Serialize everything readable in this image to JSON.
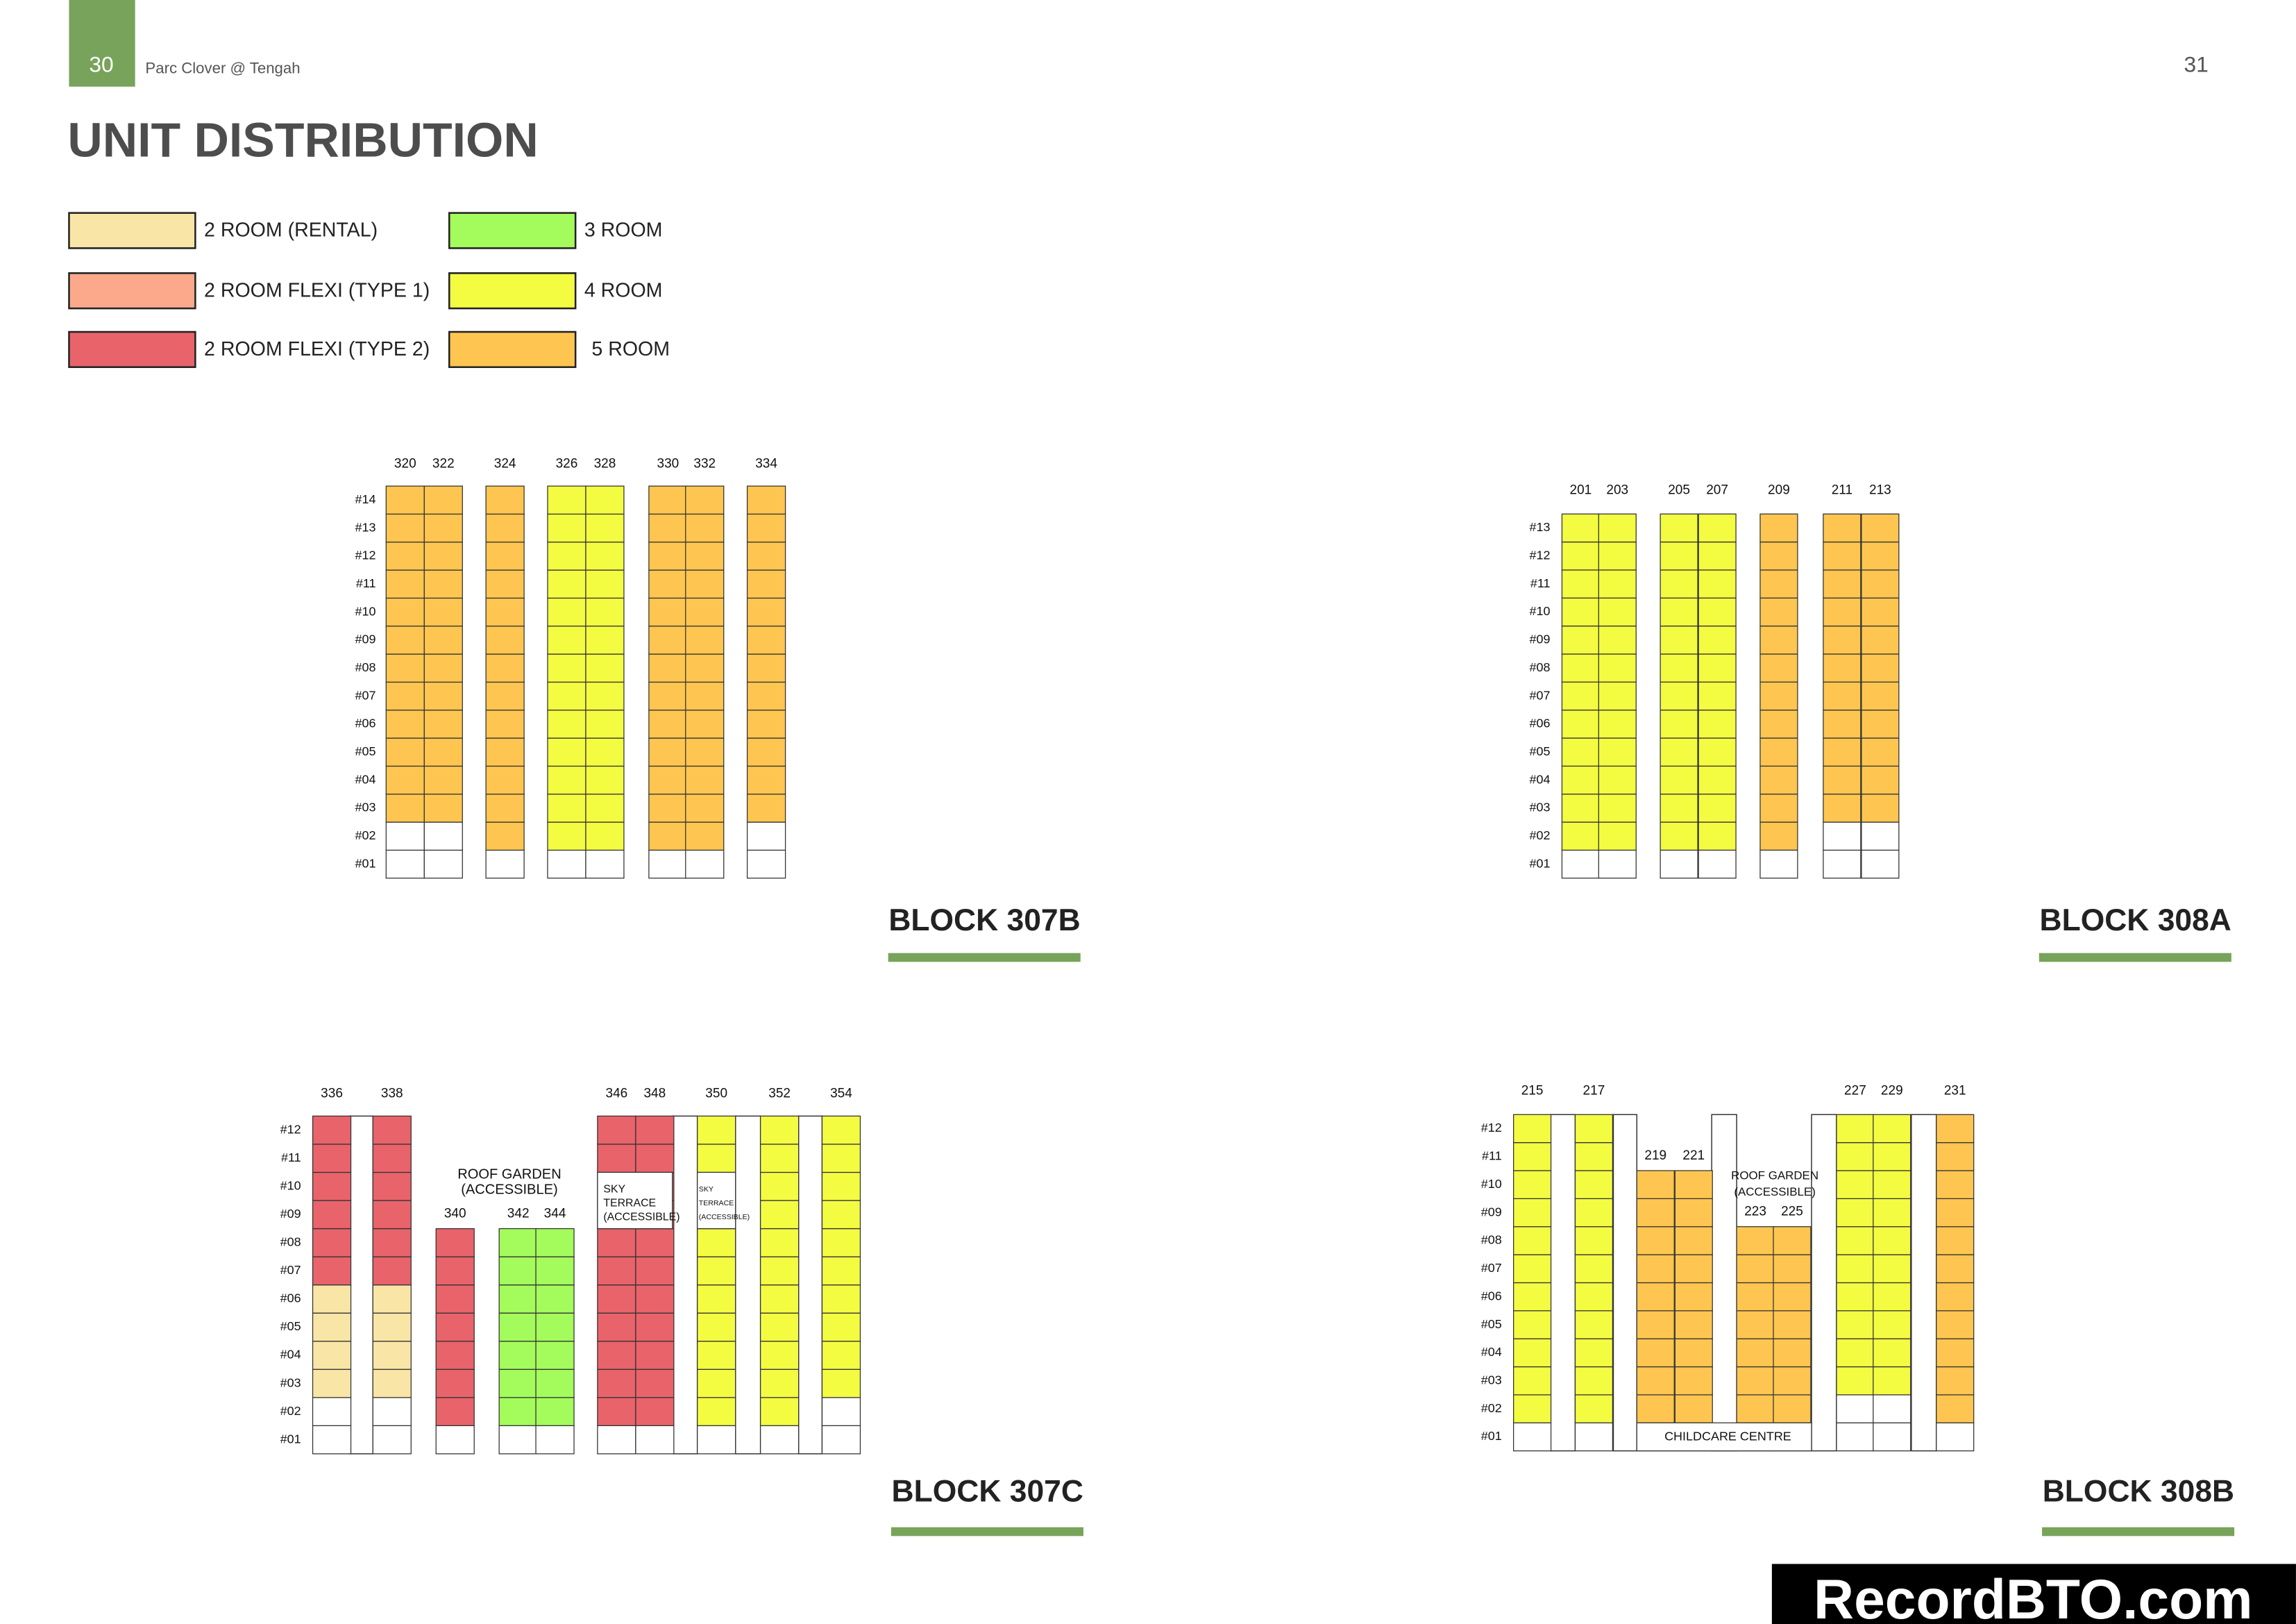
{
  "header": {
    "page_left": "30",
    "brand": "Parc Clover @ Tengah",
    "page_right": "31",
    "title": "UNIT DISTRIBUTION"
  },
  "legend": [
    {
      "label": "2 ROOM (RENTAL)",
      "color": "#f9e6a6"
    },
    {
      "label": "2 ROOM FLEXI (TYPE 1)",
      "color": "#fba98a"
    },
    {
      "label": "2 ROOM FLEXI (TYPE 2)",
      "color": "#e9636b"
    },
    {
      "label": "3 ROOM",
      "color": "#a3fc5c"
    },
    {
      "label": "4 ROOM",
      "color": "#f4fc42"
    },
    {
      "label": "5 ROOM",
      "color": "#fec650"
    }
  ],
  "blocks": [
    {
      "name": "BLOCK 307B",
      "floors": [
        "#14",
        "#13",
        "#12",
        "#11",
        "#10",
        "#09",
        "#08",
        "#07",
        "#06",
        "#05",
        "#04",
        "#03",
        "#02",
        "#01"
      ],
      "units": [
        {
          "number": "320",
          "segments": [
            {
              "legend": 5,
              "floors": [
                3,
                14
              ]
            }
          ]
        },
        {
          "number": "322",
          "segments": [
            {
              "legend": 5,
              "floors": [
                3,
                14
              ]
            }
          ]
        },
        {
          "number": "324",
          "segments": [
            {
              "legend": 5,
              "floors": [
                2,
                14
              ]
            }
          ]
        },
        {
          "number": "326",
          "segments": [
            {
              "legend": 4,
              "floors": [
                2,
                14
              ]
            }
          ]
        },
        {
          "number": "328",
          "segments": [
            {
              "legend": 4,
              "floors": [
                2,
                14
              ]
            }
          ]
        },
        {
          "number": "330",
          "segments": [
            {
              "legend": 5,
              "floors": [
                2,
                14
              ]
            }
          ]
        },
        {
          "number": "332",
          "segments": [
            {
              "legend": 5,
              "floors": [
                2,
                14
              ]
            }
          ]
        },
        {
          "number": "334",
          "segments": [
            {
              "legend": 5,
              "floors": [
                3,
                14
              ]
            }
          ]
        }
      ],
      "notes": []
    },
    {
      "name": "BLOCK 308A",
      "floors": [
        "#13",
        "#12",
        "#11",
        "#10",
        "#09",
        "#08",
        "#07",
        "#06",
        "#05",
        "#04",
        "#03",
        "#02",
        "#01"
      ],
      "units": [
        {
          "number": "201",
          "segments": [
            {
              "legend": 4,
              "floors": [
                2,
                13
              ]
            }
          ]
        },
        {
          "number": "203",
          "segments": [
            {
              "legend": 4,
              "floors": [
                2,
                13
              ]
            }
          ]
        },
        {
          "number": "205",
          "segments": [
            {
              "legend": 4,
              "floors": [
                2,
                13
              ]
            }
          ]
        },
        {
          "number": "207",
          "segments": [
            {
              "legend": 4,
              "floors": [
                2,
                13
              ]
            }
          ]
        },
        {
          "number": "209",
          "segments": [
            {
              "legend": 5,
              "floors": [
                2,
                13
              ]
            }
          ]
        },
        {
          "number": "211",
          "segments": [
            {
              "legend": 5,
              "floors": [
                3,
                13
              ]
            }
          ]
        },
        {
          "number": "213",
          "segments": [
            {
              "legend": 5,
              "floors": [
                3,
                13
              ]
            }
          ]
        }
      ],
      "notes": []
    },
    {
      "name": "BLOCK 307C",
      "floors": [
        "#12",
        "#11",
        "#10",
        "#09",
        "#08",
        "#07",
        "#06",
        "#05",
        "#04",
        "#03",
        "#02",
        "#01"
      ],
      "units": [
        {
          "number": "336",
          "segments": [
            {
              "legend": 2,
              "floors": [
                7,
                12
              ]
            },
            {
              "legend": 0,
              "floors": [
                3,
                6
              ]
            }
          ]
        },
        {
          "number": "338",
          "segments": [
            {
              "legend": 2,
              "floors": [
                7,
                12
              ]
            },
            {
              "legend": 0,
              "floors": [
                3,
                6
              ]
            }
          ]
        },
        {
          "number": "340",
          "segments": [
            {
              "legend": 2,
              "floors": [
                2,
                8
              ]
            }
          ]
        },
        {
          "number": "342",
          "segments": [
            {
              "legend": 3,
              "floors": [
                2,
                8
              ]
            }
          ]
        },
        {
          "number": "344",
          "segments": [
            {
              "legend": 3,
              "floors": [
                2,
                8
              ]
            }
          ]
        },
        {
          "number": "346",
          "segments": [
            {
              "legend": 2,
              "floors": [
                2,
                12
              ]
            }
          ]
        },
        {
          "number": "348",
          "segments": [
            {
              "legend": 2,
              "floors": [
                2,
                12
              ]
            }
          ]
        },
        {
          "number": "350",
          "segments": [
            {
              "legend": 4,
              "floors": [
                2,
                12
              ]
            }
          ]
        },
        {
          "number": "352",
          "segments": [
            {
              "legend": 4,
              "floors": [
                2,
                12
              ]
            }
          ]
        },
        {
          "number": "354",
          "segments": [
            {
              "legend": 4,
              "floors": [
                3,
                12
              ]
            }
          ]
        }
      ],
      "notes": [
        {
          "lines": [
            "ROOF GARDEN",
            "(ACCESSIBLE)"
          ]
        },
        {
          "lines": [
            "SKY",
            "TERRACE",
            "(ACCESSIBLE)"
          ]
        },
        {
          "lines": [
            "SKY",
            "TERRACE",
            "(ACCESSIBLE)"
          ]
        }
      ]
    },
    {
      "name": "BLOCK 308B",
      "floors": [
        "#12",
        "#11",
        "#10",
        "#09",
        "#08",
        "#07",
        "#06",
        "#05",
        "#04",
        "#03",
        "#02",
        "#01"
      ],
      "units": [
        {
          "number": "215",
          "segments": [
            {
              "legend": 4,
              "floors": [
                2,
                12
              ]
            }
          ]
        },
        {
          "number": "217",
          "segments": [
            {
              "legend": 4,
              "floors": [
                2,
                12
              ]
            }
          ]
        },
        {
          "number": "219",
          "segments": [
            {
              "legend": 5,
              "floors": [
                2,
                10
              ]
            }
          ]
        },
        {
          "number": "221",
          "segments": [
            {
              "legend": 5,
              "floors": [
                2,
                10
              ]
            }
          ]
        },
        {
          "number": "223",
          "segments": [
            {
              "legend": 5,
              "floors": [
                2,
                8
              ]
            }
          ]
        },
        {
          "number": "225",
          "segments": [
            {
              "legend": 5,
              "floors": [
                2,
                8
              ]
            }
          ]
        },
        {
          "number": "227",
          "segments": [
            {
              "legend": 4,
              "floors": [
                3,
                12
              ]
            }
          ]
        },
        {
          "number": "229",
          "segments": [
            {
              "legend": 4,
              "floors": [
                3,
                12
              ]
            }
          ]
        },
        {
          "number": "231",
          "segments": [
            {
              "legend": 5,
              "floors": [
                2,
                12
              ]
            }
          ]
        }
      ],
      "notes": [
        {
          "lines": [
            "ROOF GARDEN",
            "(ACCESSIBLE)"
          ]
        },
        {
          "lines": [
            "CHILDCARE CENTRE"
          ]
        }
      ]
    }
  ],
  "watermark": "RecordBTO.com"
}
